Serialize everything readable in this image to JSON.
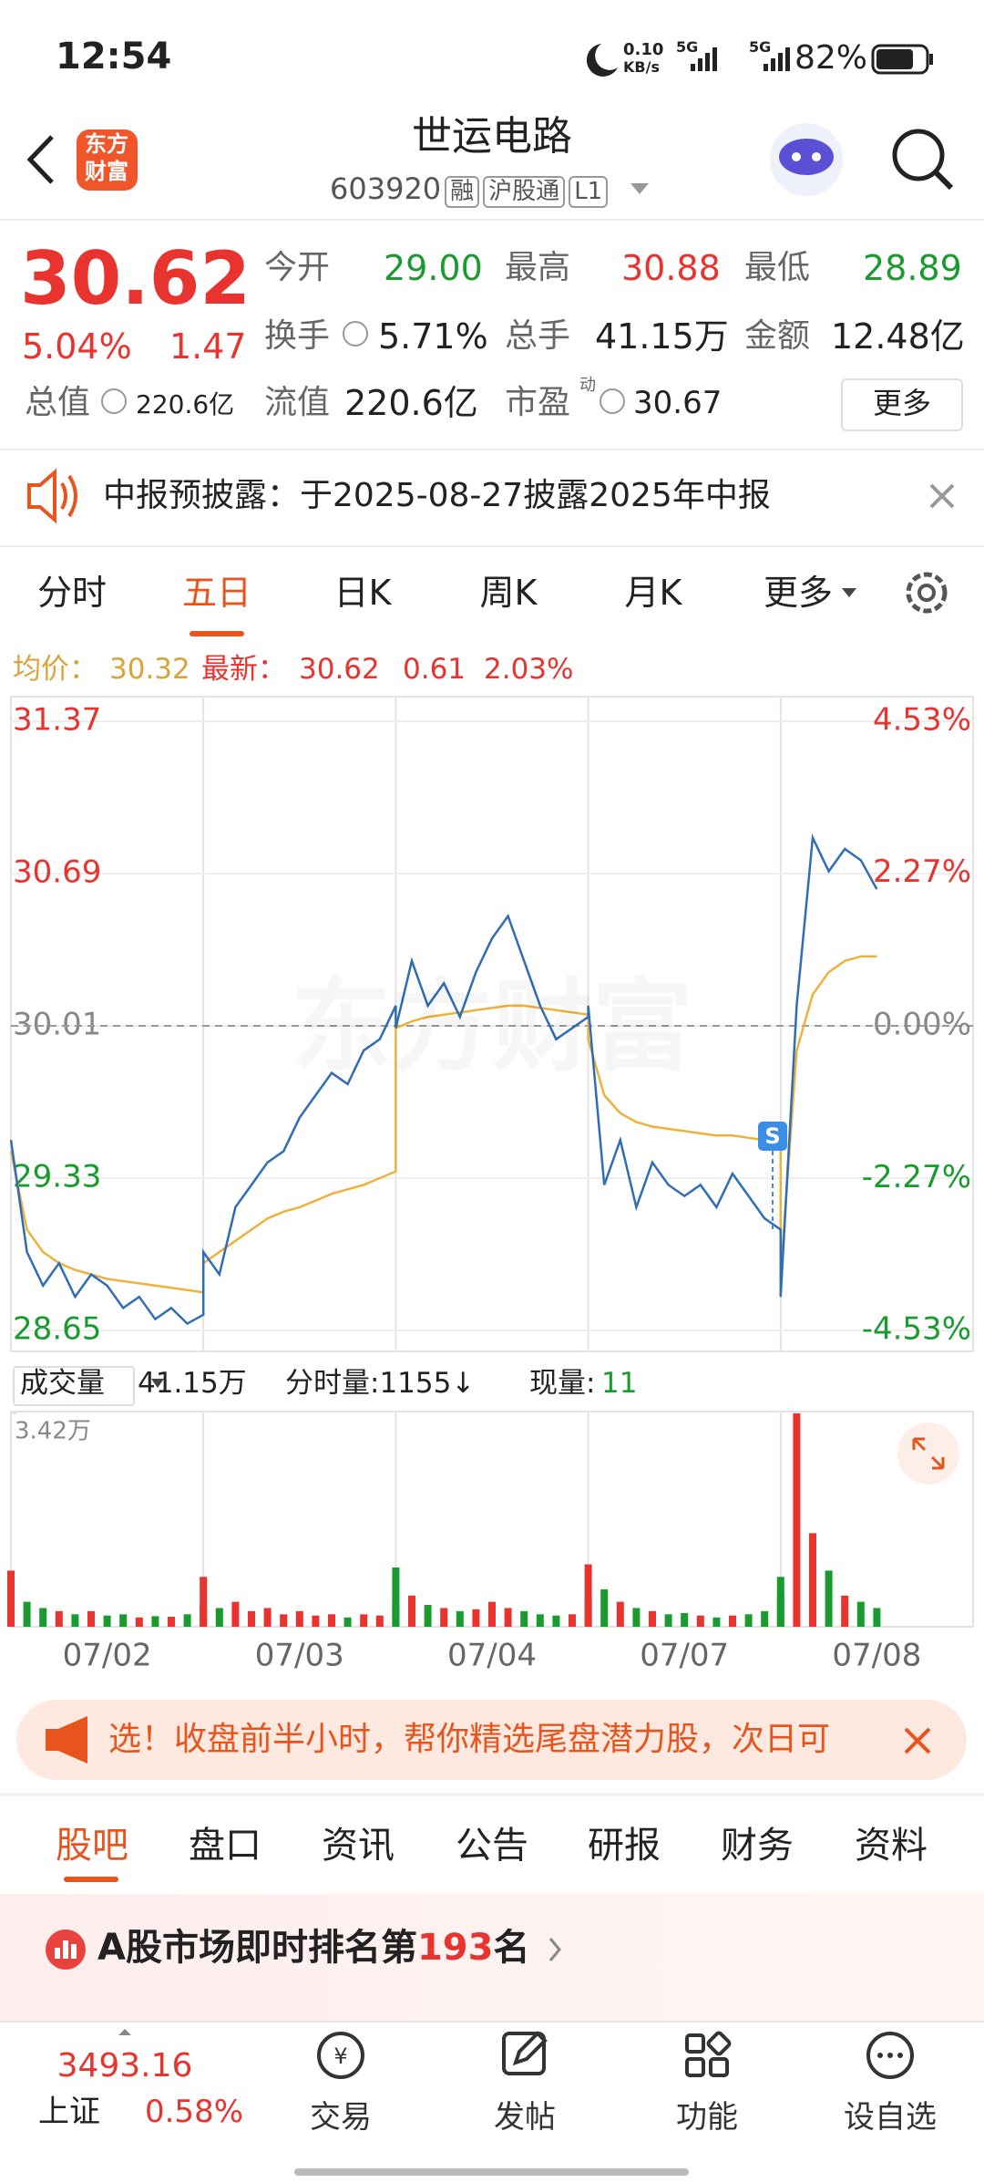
{
  "status_bar": {
    "time": "12:54",
    "net_speed": "0.10",
    "net_unit": "KB/s",
    "signal_1": "5G",
    "signal_2": "5G",
    "battery": "82%"
  },
  "header": {
    "logo": [
      "东方",
      "财富"
    ],
    "title": "世运电路",
    "code": "603920",
    "badges": [
      "融",
      "沪股通",
      "L1"
    ]
  },
  "quote": {
    "price": "30.62",
    "change_pct": "5.04%",
    "change": "1.47",
    "open_label": "今开",
    "open": "29.00",
    "high_label": "最高",
    "high": "30.88",
    "low_label": "最低",
    "low": "28.89",
    "turnover_label": "换手",
    "turnover": "5.71%",
    "volume_label": "总手",
    "volume": "41.15万",
    "amount_label": "金额",
    "amount": "12.48亿",
    "mktcap_label": "总值",
    "mktcap": "220.6亿",
    "float_label": "流值",
    "float": "220.6亿",
    "pe_label": "市盈",
    "pe_mark": "动",
    "pe": "30.67",
    "more": "更多"
  },
  "notice": "中报预披露：于2025-08-27披露2025年中报",
  "period_tabs": [
    "分时",
    "五日",
    "日K",
    "周K",
    "月K",
    "更多"
  ],
  "info": {
    "avg": "30.32",
    "last": "30.62",
    "change": "0.61",
    "pct": "2.03%"
  },
  "watermark": "东方财富",
  "chart_data": {
    "type": "line",
    "categories": [
      "07/02",
      "07/03",
      "07/04",
      "07/07",
      "07/08"
    ],
    "ylim": [
      28.65,
      31.37
    ],
    "yticks": [
      31.37,
      30.69,
      30.01,
      29.33,
      28.65
    ],
    "y2lim": [
      -4.53,
      4.53
    ],
    "y2ticks": [
      {
        "value": 4.53,
        "label": "4.53%"
      },
      {
        "value": 2.27,
        "label": "2.27%"
      },
      {
        "value": 0,
        "label": "0.00%"
      },
      {
        "value": -2.27,
        "label": "-2.27%"
      },
      {
        "value": -4.53,
        "label": "-4.53%"
      }
    ],
    "up_color": "#e8332f",
    "down_color": "#1a9b2f",
    "flat_color": "#888888",
    "series": [
      {
        "name": "均价：",
        "color": "#f0b03c",
        "values": [
          [
            29.45,
            29.1,
            29.0,
            28.95,
            28.92,
            28.9,
            28.88,
            28.87,
            28.86,
            28.85,
            28.84,
            28.83,
            28.82
          ],
          [
            28.95,
            29.0,
            29.05,
            29.1,
            29.15,
            29.18,
            29.2,
            29.23,
            29.26,
            29.28,
            29.3,
            29.33,
            29.36
          ],
          [
            30.0,
            30.03,
            30.05,
            30.06,
            30.07,
            30.08,
            30.09,
            30.1,
            30.1,
            30.09,
            30.08,
            30.07,
            30.06
          ],
          [
            29.95,
            29.7,
            29.62,
            29.58,
            29.56,
            29.55,
            29.54,
            29.53,
            29.52,
            29.52,
            29.51,
            29.5,
            29.48
          ],
          [
            28.9,
            29.9,
            30.15,
            30.25,
            30.3,
            30.32,
            30.32
          ]
        ]
      },
      {
        "name": "最新：",
        "color": "#2f6db5",
        "values": [
          [
            29.5,
            29.0,
            28.85,
            28.95,
            28.8,
            28.9,
            28.85,
            28.75,
            28.8,
            28.7,
            28.75,
            28.68,
            28.72
          ],
          [
            29.0,
            28.9,
            29.2,
            29.3,
            29.4,
            29.45,
            29.6,
            29.7,
            29.8,
            29.75,
            29.9,
            29.95,
            30.1
          ],
          [
            30.0,
            30.3,
            30.1,
            30.2,
            30.05,
            30.25,
            30.4,
            30.5,
            30.3,
            30.1,
            29.95,
            30.0,
            30.05
          ],
          [
            30.1,
            29.3,
            29.5,
            29.2,
            29.4,
            29.3,
            29.25,
            29.3,
            29.2,
            29.35,
            29.25,
            29.15,
            29.1
          ],
          [
            28.8,
            30.1,
            30.85,
            30.7,
            30.8,
            30.75,
            30.62
          ]
        ]
      }
    ],
    "volume": {
      "label": "成交量",
      "total": "41.15万",
      "tick_volume": "分时量:1155↓",
      "current_label": "现量:",
      "current": "11",
      "ylim": [
        0,
        34200
      ],
      "yticks": [
        {
          "value": 34200,
          "label": "3.42万"
        }
      ],
      "values": [
        [
          9000,
          4000,
          3000,
          2500,
          2000,
          2500,
          1800,
          2000,
          1500,
          1700,
          1600,
          2000,
          3500
        ],
        [
          8000,
          3000,
          4000,
          2500,
          3000,
          2000,
          2500,
          1800,
          2000,
          1500,
          2000,
          1800,
          4000
        ],
        [
          9500,
          5000,
          3500,
          3000,
          2500,
          2800,
          4000,
          3000,
          2500,
          2000,
          1800,
          2000,
          4500
        ],
        [
          10000,
          6000,
          4000,
          3000,
          2500,
          2000,
          2200,
          1800,
          1500,
          1800,
          2000,
          2500,
          5000
        ],
        [
          8000,
          34200,
          15000,
          9000,
          5000,
          4000,
          3000
        ]
      ]
    }
  },
  "banner": "选！收盘前半小时，帮你精选尾盘潜力股，次日可",
  "content_tabs": [
    "股吧",
    "盘口",
    "资讯",
    "公告",
    "研报",
    "财务",
    "资料"
  ],
  "ranking": {
    "prefix": "A股市场即时排名第",
    "rank": "193",
    "suffix": "名"
  },
  "bottom_nav": {
    "index_value": "3493.16",
    "index_name": "上证",
    "index_pct": "0.58%",
    "items": [
      "交易",
      "发帖",
      "功能",
      "设自选"
    ]
  }
}
